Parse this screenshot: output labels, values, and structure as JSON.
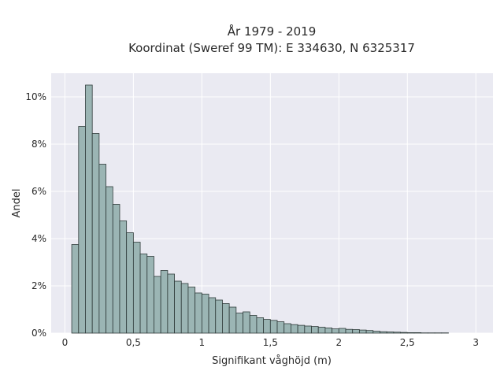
{
  "chart_data": {
    "type": "bar",
    "title_line1": "År 1979 - 2019",
    "title_line2": "Koordinat (Sweref 99 TM): E 334630, N 6325317",
    "xlabel": "Signifikant våghöjd (m)",
    "ylabel": "Andel",
    "xlim": [
      -0.1,
      3.125
    ],
    "ylim": [
      0,
      11.0
    ],
    "grid": true,
    "bin_width": 0.05,
    "x_ticks": [
      0,
      0.5,
      1,
      1.5,
      2,
      2.5,
      3
    ],
    "x_tick_labels": [
      "0",
      "0,5",
      "1",
      "1,5",
      "2",
      "2,5",
      "3"
    ],
    "y_ticks": [
      0,
      2,
      4,
      6,
      8,
      10
    ],
    "y_tick_labels": [
      "0%",
      "2%",
      "4%",
      "6%",
      "8%",
      "10%"
    ],
    "bins_start": [
      0.0,
      0.05,
      0.1,
      0.15,
      0.2,
      0.25,
      0.3,
      0.35,
      0.4,
      0.45,
      0.5,
      0.55,
      0.6,
      0.65,
      0.7,
      0.75,
      0.8,
      0.85,
      0.9,
      0.95,
      1.0,
      1.05,
      1.1,
      1.15,
      1.2,
      1.25,
      1.3,
      1.35,
      1.4,
      1.45,
      1.5,
      1.55,
      1.6,
      1.65,
      1.7,
      1.75,
      1.8,
      1.85,
      1.9,
      1.95,
      2.0,
      2.05,
      2.1,
      2.15,
      2.2,
      2.25,
      2.3,
      2.35,
      2.4,
      2.45,
      2.5,
      2.55,
      2.6,
      2.65,
      2.7,
      2.75,
      2.8,
      2.85,
      2.9,
      2.95
    ],
    "values": [
      0,
      3.75,
      8.75,
      10.5,
      8.45,
      7.15,
      6.2,
      5.45,
      4.75,
      4.25,
      3.85,
      3.35,
      3.25,
      2.4,
      2.65,
      2.5,
      2.2,
      2.1,
      1.95,
      1.7,
      1.65,
      1.5,
      1.4,
      1.25,
      1.1,
      0.85,
      0.9,
      0.75,
      0.65,
      0.58,
      0.54,
      0.48,
      0.4,
      0.36,
      0.33,
      0.3,
      0.28,
      0.25,
      0.22,
      0.18,
      0.2,
      0.16,
      0.15,
      0.13,
      0.11,
      0.08,
      0.06,
      0.05,
      0.04,
      0.03,
      0.02,
      0.02,
      0.01,
      0.01,
      0.01,
      0.01,
      0,
      0,
      0,
      0
    ],
    "colors": {
      "background": "#ffffff",
      "plot_background": "#eaeaf2",
      "grid": "#ffffff",
      "bar_fill": "#9bb5b4",
      "bar_edge": "#2f3b3a",
      "text": "#2a2a2a"
    }
  }
}
